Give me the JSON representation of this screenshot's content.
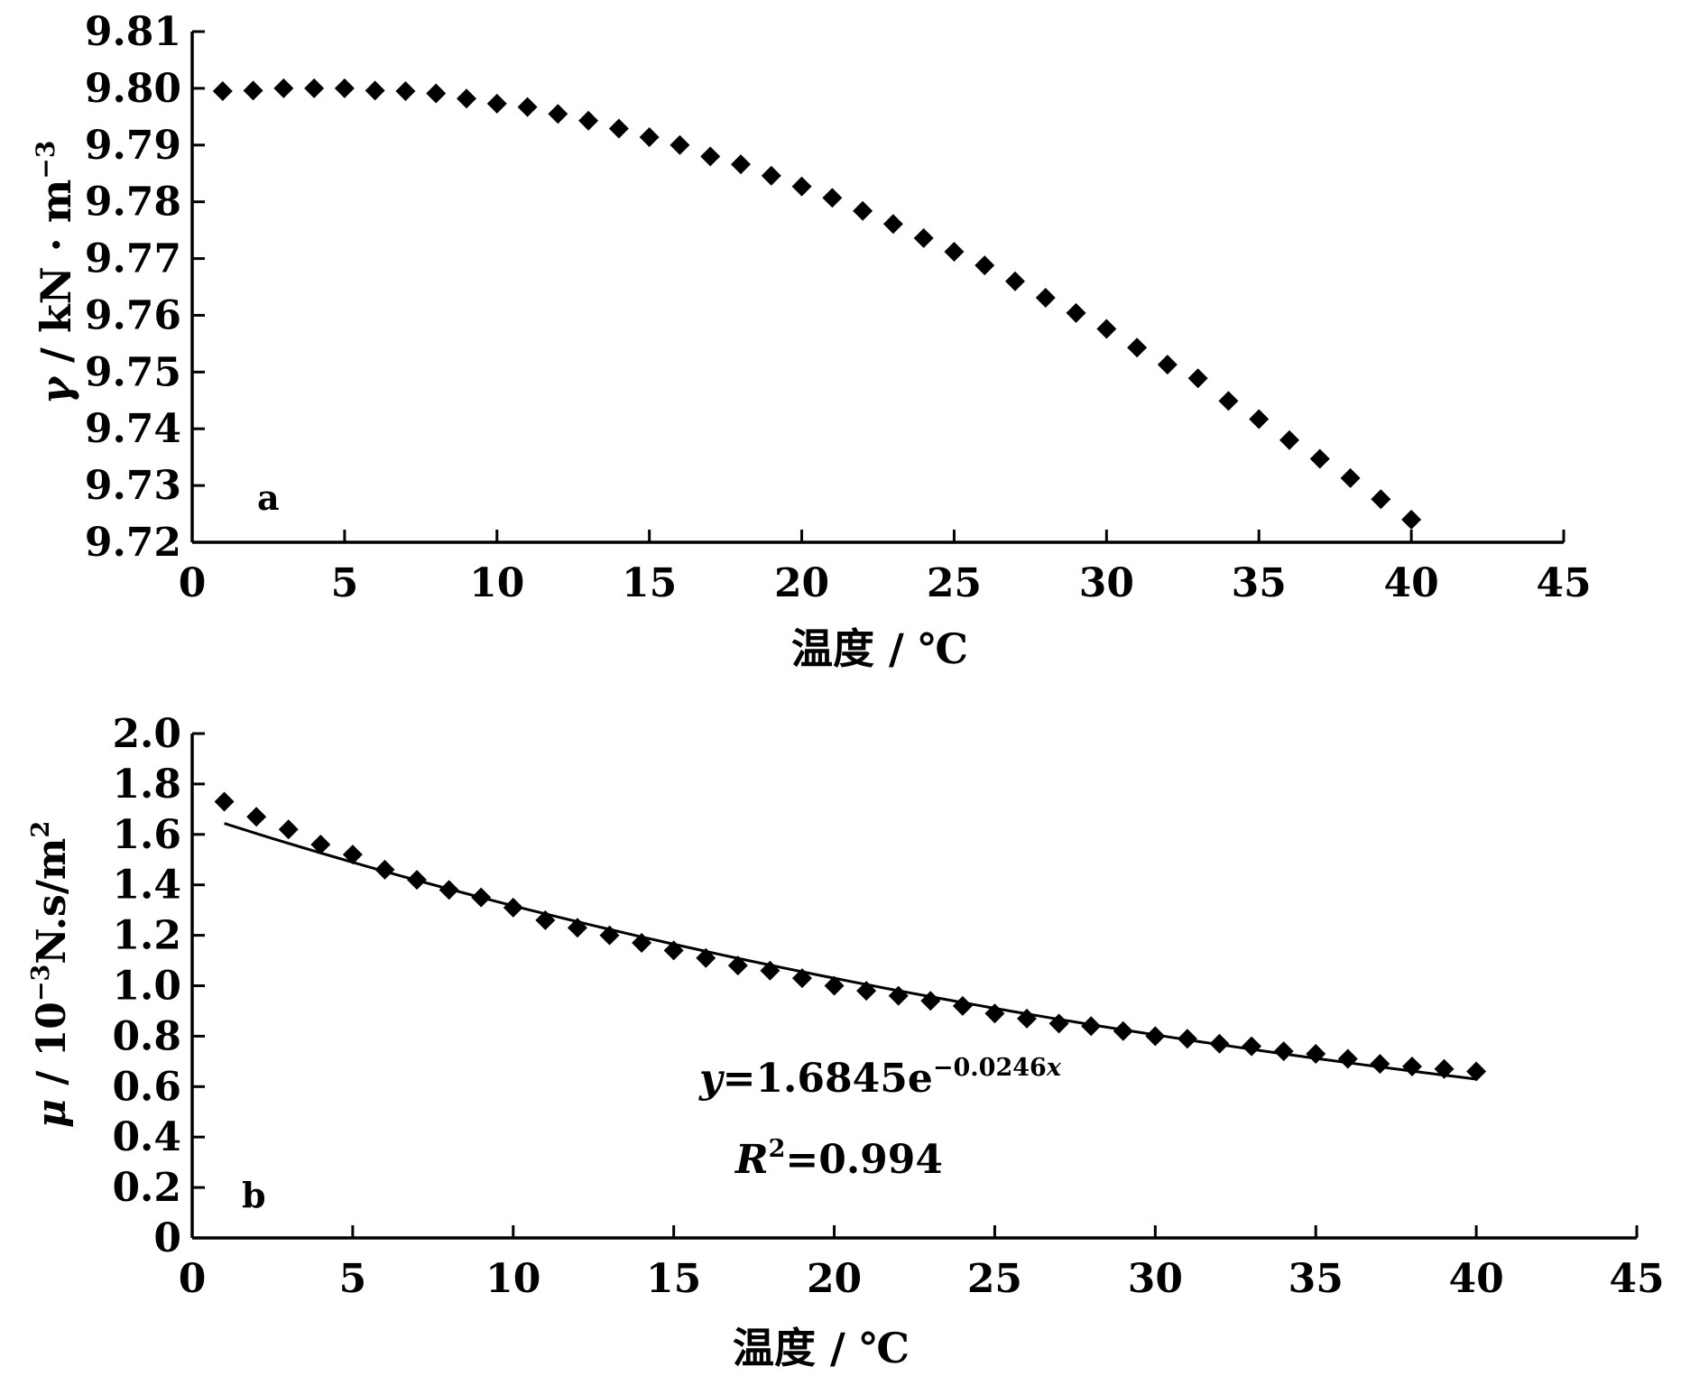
{
  "chart_data": [
    {
      "type": "scatter",
      "panel_label": "a",
      "xlabel": "温度 / ℃",
      "ylabel_parts": {
        "sym": "γ",
        "rest": " / kN · m",
        "sup": "−3"
      },
      "xlim": [
        0,
        45
      ],
      "ylim": [
        9.72,
        9.81
      ],
      "x_ticks": [
        "0",
        "5",
        "10",
        "15",
        "20",
        "25",
        "30",
        "35",
        "40",
        "45"
      ],
      "y_ticks": [
        "9.72",
        "9.73",
        "9.74",
        "9.75",
        "9.76",
        "9.77",
        "9.78",
        "9.79",
        "9.80",
        "9.81"
      ],
      "marker_color": "#000000",
      "series": [
        {
          "x": [
            1,
            2,
            3,
            4,
            5,
            6,
            7,
            8,
            9,
            10,
            11,
            12,
            13,
            14,
            15,
            16,
            17,
            18,
            19,
            20,
            21,
            22,
            23,
            24,
            25,
            26,
            27,
            28,
            29,
            30,
            31,
            32,
            33,
            34,
            35,
            36,
            37,
            38,
            39,
            40
          ],
          "y": [
            9.7995,
            9.7996,
            9.8,
            9.8,
            9.8,
            9.7996,
            9.7995,
            9.7991,
            9.7982,
            9.7973,
            9.7967,
            9.7955,
            9.7943,
            9.7929,
            9.7914,
            9.79,
            9.788,
            9.7866,
            9.7846,
            9.7827,
            9.7807,
            9.7784,
            9.7761,
            9.7736,
            9.7712,
            9.7688,
            9.766,
            9.7631,
            9.7604,
            9.7576,
            9.7543,
            9.7513,
            9.7489,
            9.7449,
            9.7417,
            9.738,
            9.7347,
            9.7313,
            9.7276,
            9.724
          ]
        }
      ]
    },
    {
      "type": "scatter",
      "panel_label": "b",
      "xlabel": "温度 / ℃",
      "ylabel_parts": {
        "sym": "μ",
        "rest": " / 10",
        "sup": "−3",
        "rest2": "N.s/m",
        "sup2": "2"
      },
      "xlim": [
        0,
        45
      ],
      "ylim": [
        0,
        2.0
      ],
      "x_ticks": [
        "0",
        "5",
        "10",
        "15",
        "20",
        "25",
        "30",
        "35",
        "40",
        "45"
      ],
      "y_ticks": [
        "0",
        "0.2",
        "0.4",
        "0.6",
        "0.8",
        "1.0",
        "1.2",
        "1.4",
        "1.6",
        "1.8",
        "2.0"
      ],
      "marker_color": "#000000",
      "series": [
        {
          "x": [
            1,
            2,
            3,
            4,
            5,
            6,
            7,
            8,
            9,
            10,
            11,
            12,
            13,
            14,
            15,
            16,
            17,
            18,
            19,
            20,
            21,
            22,
            23,
            24,
            25,
            26,
            27,
            28,
            29,
            30,
            31,
            32,
            33,
            34,
            35,
            36,
            37,
            38,
            39,
            40
          ],
          "y": [
            1.73,
            1.67,
            1.62,
            1.56,
            1.52,
            1.46,
            1.42,
            1.38,
            1.35,
            1.31,
            1.26,
            1.23,
            1.2,
            1.17,
            1.14,
            1.11,
            1.08,
            1.06,
            1.03,
            1.0,
            0.98,
            0.96,
            0.94,
            0.92,
            0.89,
            0.87,
            0.85,
            0.84,
            0.82,
            0.8,
            0.79,
            0.77,
            0.76,
            0.74,
            0.73,
            0.71,
            0.69,
            0.68,
            0.67,
            0.66
          ]
        }
      ],
      "trendline": {
        "type": "exponential",
        "a": 1.6845,
        "b": -0.0246,
        "x_range": [
          1,
          40
        ]
      },
      "equation": {
        "lhs": "y",
        "rhs": "=1.6845e",
        "exp": "−0.0246",
        "exp_var": "x"
      },
      "r2": {
        "sym": "R",
        "sup": "2",
        "val": "=0.994"
      }
    }
  ]
}
